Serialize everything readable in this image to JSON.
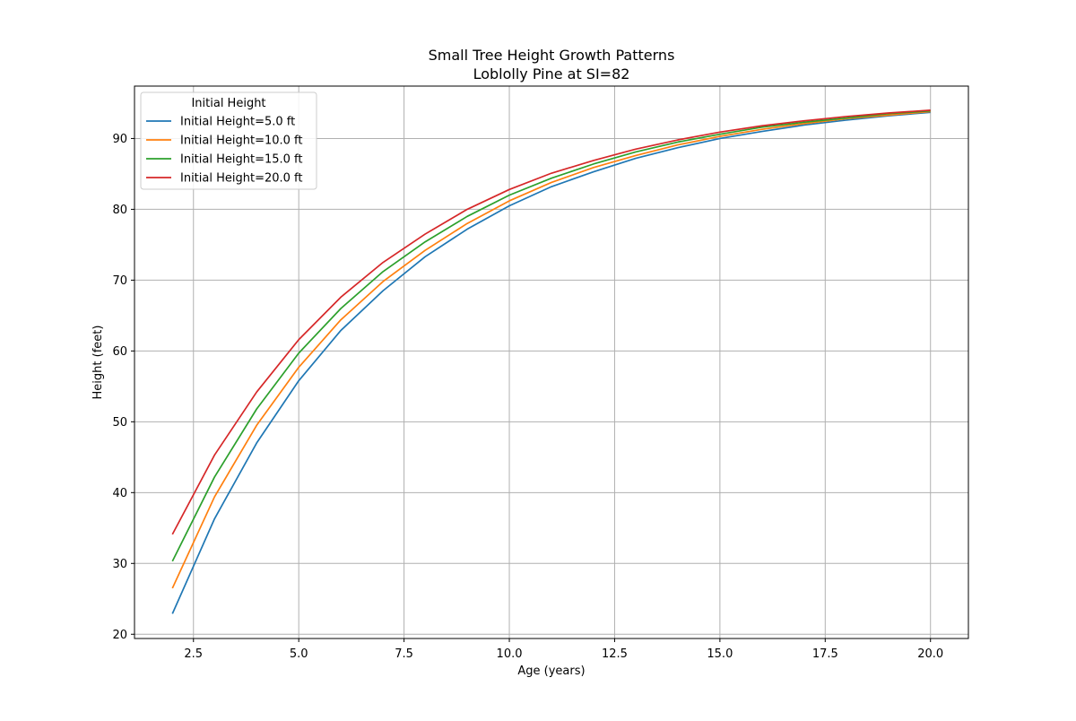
{
  "chart_data": {
    "type": "line",
    "title": "Small Tree Height Growth Patterns",
    "subtitle": "Loblolly Pine at SI=82",
    "xlabel": "Age (years)",
    "ylabel": "Height (feet)",
    "xlim": [
      1.1,
      20.9
    ],
    "ylim": [
      19.4,
      97.4
    ],
    "xticks": [
      2.5,
      5.0,
      7.5,
      10.0,
      12.5,
      15.0,
      17.5,
      20.0
    ],
    "xtick_labels": [
      "2.5",
      "5.0",
      "7.5",
      "10.0",
      "12.5",
      "15.0",
      "17.5",
      "20.0"
    ],
    "yticks": [
      20,
      30,
      40,
      50,
      60,
      70,
      80,
      90
    ],
    "ytick_labels": [
      "20",
      "30",
      "40",
      "50",
      "60",
      "70",
      "80",
      "90"
    ],
    "grid": true,
    "legend": {
      "title": "Initial Height",
      "position": "top-left"
    },
    "x": [
      2,
      3,
      4,
      5,
      6,
      7,
      8,
      9,
      10,
      11,
      12,
      13,
      14,
      15,
      16,
      17,
      18,
      19,
      20
    ],
    "series": [
      {
        "name": "Initial Height=5.0 ft",
        "color": "#1f77b4",
        "values": [
          22.9,
          36.3,
          47.0,
          55.8,
          62.9,
          68.5,
          73.3,
          77.2,
          80.5,
          83.2,
          85.3,
          87.2,
          88.7,
          90.0,
          91.0,
          91.9,
          92.6,
          93.2,
          93.7
        ]
      },
      {
        "name": "Initial Height=10.0 ft",
        "color": "#ff7f0e",
        "values": [
          26.5,
          39.4,
          49.5,
          57.7,
          64.4,
          69.8,
          74.2,
          78.0,
          81.2,
          83.8,
          85.9,
          87.6,
          89.1,
          90.3,
          91.3,
          92.1,
          92.8,
          93.3,
          93.8
        ]
      },
      {
        "name": "Initial Height=15.0 ft",
        "color": "#2ca02c",
        "values": [
          30.3,
          42.2,
          51.8,
          59.7,
          66.0,
          71.2,
          75.4,
          79.0,
          82.0,
          84.4,
          86.4,
          88.1,
          89.5,
          90.6,
          91.6,
          92.3,
          92.9,
          93.5,
          93.9
        ]
      },
      {
        "name": "Initial Height=20.0 ft",
        "color": "#d62728",
        "values": [
          34.1,
          45.3,
          54.2,
          61.6,
          67.6,
          72.5,
          76.5,
          80.0,
          82.8,
          85.1,
          86.9,
          88.5,
          89.8,
          90.9,
          91.8,
          92.5,
          93.1,
          93.6,
          94.0
        ]
      }
    ]
  }
}
